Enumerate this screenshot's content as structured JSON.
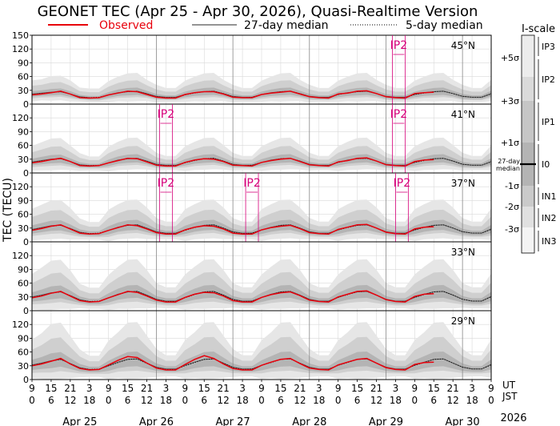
{
  "chart_data": {
    "type": "line",
    "title": "GEONET TEC (Apr 25 - Apr 30, 2026), Quasi-Realtime Version",
    "legend": [
      {
        "key": "observed",
        "label": "Observed",
        "color": "#e8000b"
      },
      {
        "key": "median27",
        "label": "27-day median",
        "color": "#555555"
      },
      {
        "key": "median5",
        "label": "5-day median",
        "color": "#000000"
      }
    ],
    "ylabel": "TEC (TECU)",
    "ylim": [
      0,
      150
    ],
    "yticks": [
      0,
      30,
      60,
      90,
      120,
      150
    ],
    "x_unit_labels": {
      "ut": "UT",
      "jst": "JST"
    },
    "xticks_ut": [
      "9",
      "15",
      "21",
      "3",
      "9",
      "15",
      "21",
      "3",
      "9",
      "15",
      "21",
      "3",
      "9",
      "15",
      "21",
      "3",
      "9",
      "15",
      "21",
      "3",
      "9",
      "15",
      "21",
      "3",
      "9"
    ],
    "xticks_jst": [
      "0",
      "6",
      "12",
      "18",
      "0",
      "6",
      "12",
      "18",
      "0",
      "6",
      "12",
      "18",
      "0",
      "6",
      "12",
      "18",
      "0",
      "6",
      "12",
      "18",
      "0",
      "6",
      "12",
      "18",
      "0"
    ],
    "days": [
      "Apr 25",
      "Apr 26",
      "Apr 27",
      "Apr 28",
      "Apr 29",
      "Apr 30"
    ],
    "year": "2026",
    "x_hours": [
      0,
      3,
      6,
      9,
      12,
      15,
      18,
      21,
      24,
      27,
      30,
      33,
      36,
      39,
      42,
      45,
      48,
      51,
      54,
      57,
      60,
      63,
      66,
      69,
      72,
      75,
      78,
      81,
      84,
      87,
      90,
      93,
      96,
      99,
      102,
      105,
      108,
      111,
      114,
      117,
      120,
      123,
      126,
      129,
      132,
      135,
      138,
      141,
      144
    ],
    "observed_until_hour": 122,
    "panels": [
      {
        "lat": "45°N",
        "median27": [
          22,
          24,
          26,
          27,
          22,
          16,
          14,
          14,
          20,
          25,
          27,
          28,
          23,
          17,
          15,
          15,
          21,
          25,
          27,
          28,
          23,
          17,
          15,
          15,
          21,
          25,
          27,
          28,
          23,
          17,
          15,
          15,
          21,
          25,
          27,
          28,
          23,
          17,
          15,
          15,
          21,
          25,
          27,
          28,
          23,
          17,
          15,
          15,
          23
        ],
        "observed": [
          20,
          22,
          25,
          28,
          22,
          14,
          13,
          14,
          20,
          24,
          28,
          27,
          21,
          15,
          13,
          13,
          21,
          25,
          27,
          27,
          22,
          15,
          14,
          14,
          21,
          24,
          26,
          28,
          22,
          16,
          14,
          13,
          22,
          24,
          28,
          29,
          23,
          16,
          14,
          13,
          23,
          25,
          26
        ],
        "median5": [
          21,
          23,
          25,
          27,
          22,
          15,
          14,
          15,
          20,
          24,
          27,
          28,
          22,
          16,
          14,
          14,
          20,
          24,
          27,
          28,
          23,
          16,
          14,
          15,
          21,
          24,
          27,
          28,
          23,
          16,
          14,
          14,
          21,
          24,
          27,
          28,
          23,
          16,
          14,
          14,
          21,
          24,
          27,
          28,
          23,
          17,
          15,
          15,
          22
        ],
        "std": [
          6,
          6,
          7,
          7,
          6,
          4,
          4,
          4,
          6,
          7,
          8,
          8,
          6,
          5,
          4,
          4,
          6,
          7,
          8,
          8,
          6,
          5,
          4,
          4,
          6,
          7,
          8,
          8,
          6,
          5,
          4,
          4,
          6,
          7,
          8,
          8,
          6,
          5,
          4,
          4,
          6,
          7,
          8,
          8,
          6,
          5,
          4,
          4,
          6
        ],
        "markers": [
          {
            "label": "IP2",
            "hour": 115
          }
        ]
      },
      {
        "lat": "41°N",
        "median27": [
          24,
          27,
          30,
          31,
          25,
          18,
          16,
          16,
          22,
          28,
          31,
          32,
          26,
          19,
          17,
          17,
          23,
          28,
          31,
          32,
          26,
          19,
          17,
          17,
          23,
          28,
          31,
          32,
          26,
          19,
          17,
          17,
          23,
          28,
          31,
          32,
          26,
          19,
          17,
          17,
          23,
          28,
          31,
          32,
          26,
          19,
          17,
          17,
          25
        ],
        "observed": [
          22,
          25,
          29,
          32,
          25,
          16,
          15,
          16,
          22,
          27,
          32,
          31,
          24,
          17,
          15,
          15,
          23,
          28,
          31,
          30,
          25,
          17,
          16,
          15,
          23,
          27,
          30,
          32,
          25,
          18,
          16,
          15,
          24,
          27,
          32,
          33,
          26,
          18,
          16,
          15,
          25,
          28,
          29
        ],
        "median5": [
          23,
          26,
          29,
          31,
          25,
          17,
          16,
          17,
          22,
          27,
          31,
          32,
          25,
          18,
          16,
          16,
          22,
          27,
          31,
          32,
          26,
          18,
          16,
          17,
          23,
          27,
          31,
          32,
          26,
          18,
          16,
          16,
          23,
          27,
          31,
          32,
          26,
          18,
          16,
          16,
          23,
          27,
          31,
          32,
          26,
          19,
          17,
          17,
          24
        ],
        "std": [
          7,
          8,
          9,
          9,
          7,
          5,
          4,
          4,
          7,
          8,
          9,
          9,
          7,
          5,
          4,
          4,
          7,
          8,
          9,
          9,
          7,
          5,
          4,
          4,
          7,
          8,
          9,
          9,
          7,
          5,
          4,
          4,
          7,
          8,
          9,
          9,
          7,
          5,
          4,
          4,
          7,
          8,
          9,
          9,
          7,
          5,
          4,
          4,
          7
        ],
        "markers": [
          {
            "label": "IP2",
            "hour": 42
          },
          {
            "label": "IP2",
            "hour": 115
          }
        ]
      },
      {
        "lat": "37°N",
        "median27": [
          27,
          31,
          35,
          36,
          29,
          21,
          18,
          18,
          25,
          32,
          36,
          37,
          30,
          22,
          19,
          19,
          26,
          32,
          36,
          37,
          30,
          22,
          19,
          19,
          26,
          32,
          36,
          37,
          30,
          22,
          19,
          19,
          26,
          32,
          36,
          37,
          30,
          22,
          19,
          19,
          26,
          32,
          36,
          37,
          30,
          22,
          19,
          19,
          28
        ],
        "observed": [
          25,
          29,
          34,
          37,
          28,
          19,
          17,
          18,
          25,
          31,
          37,
          35,
          28,
          20,
          17,
          17,
          26,
          32,
          35,
          34,
          28,
          19,
          17,
          17,
          26,
          31,
          34,
          36,
          29,
          20,
          18,
          17,
          27,
          32,
          37,
          38,
          30,
          21,
          18,
          17,
          28,
          32,
          33
        ],
        "median5": [
          26,
          30,
          34,
          36,
          29,
          20,
          18,
          19,
          25,
          31,
          36,
          37,
          29,
          21,
          18,
          18,
          25,
          31,
          36,
          37,
          30,
          21,
          18,
          19,
          26,
          31,
          36,
          37,
          30,
          21,
          18,
          18,
          26,
          31,
          36,
          37,
          30,
          21,
          18,
          18,
          26,
          31,
          36,
          37,
          30,
          22,
          19,
          19,
          27
        ],
        "std": [
          9,
          10,
          11,
          11,
          9,
          6,
          5,
          5,
          9,
          10,
          11,
          11,
          9,
          6,
          5,
          5,
          9,
          10,
          11,
          11,
          9,
          6,
          5,
          5,
          9,
          10,
          11,
          11,
          9,
          6,
          5,
          5,
          9,
          10,
          11,
          11,
          9,
          6,
          5,
          5,
          9,
          10,
          11,
          11,
          9,
          6,
          5,
          5,
          9
        ],
        "markers": [
          {
            "label": "IP2",
            "hour": 42
          },
          {
            "label": "IP2",
            "hour": 69
          },
          {
            "label": "IP2",
            "hour": 116
          }
        ]
      },
      {
        "lat": "33°N",
        "median27": [
          30,
          34,
          39,
          41,
          33,
          24,
          20,
          20,
          28,
          36,
          41,
          42,
          34,
          25,
          21,
          21,
          29,
          36,
          41,
          42,
          34,
          25,
          21,
          21,
          29,
          36,
          41,
          42,
          34,
          25,
          21,
          21,
          29,
          36,
          41,
          42,
          34,
          25,
          21,
          21,
          29,
          36,
          41,
          42,
          34,
          25,
          21,
          21,
          31
        ],
        "observed": [
          28,
          32,
          38,
          42,
          32,
          22,
          19,
          20,
          28,
          35,
          42,
          40,
          32,
          23,
          19,
          19,
          29,
          36,
          40,
          39,
          32,
          22,
          19,
          19,
          29,
          35,
          39,
          41,
          33,
          23,
          20,
          19,
          30,
          36,
          42,
          43,
          34,
          24,
          20,
          19,
          31,
          36,
          37
        ],
        "median5": [
          29,
          33,
          38,
          41,
          33,
          23,
          20,
          21,
          28,
          35,
          41,
          42,
          33,
          24,
          20,
          20,
          28,
          35,
          41,
          42,
          34,
          24,
          20,
          21,
          29,
          35,
          41,
          42,
          34,
          24,
          20,
          20,
          29,
          35,
          41,
          42,
          34,
          24,
          20,
          20,
          29,
          35,
          41,
          42,
          34,
          25,
          21,
          21,
          30
        ],
        "std": [
          10,
          12,
          14,
          14,
          11,
          7,
          6,
          6,
          10,
          12,
          14,
          14,
          11,
          7,
          6,
          6,
          10,
          12,
          14,
          14,
          11,
          7,
          6,
          6,
          10,
          12,
          14,
          14,
          11,
          7,
          6,
          6,
          10,
          12,
          14,
          14,
          11,
          7,
          6,
          6,
          10,
          12,
          14,
          14,
          11,
          7,
          6,
          6,
          10
        ],
        "markers": []
      },
      {
        "lat": "29°N",
        "median27": [
          32,
          36,
          41,
          44,
          35,
          26,
          22,
          22,
          30,
          38,
          44,
          45,
          36,
          27,
          23,
          23,
          31,
          38,
          44,
          45,
          36,
          27,
          23,
          23,
          31,
          38,
          44,
          45,
          36,
          27,
          23,
          23,
          31,
          38,
          44,
          45,
          36,
          27,
          23,
          23,
          31,
          38,
          44,
          45,
          36,
          27,
          23,
          23,
          33
        ],
        "observed": [
          30,
          34,
          40,
          46,
          34,
          24,
          21,
          22,
          32,
          42,
          50,
          48,
          36,
          25,
          21,
          21,
          33,
          44,
          52,
          46,
          34,
          24,
          21,
          21,
          31,
          38,
          44,
          46,
          35,
          25,
          22,
          21,
          32,
          38,
          44,
          46,
          36,
          26,
          22,
          21,
          33,
          37,
          38
        ],
        "median5": [
          31,
          35,
          40,
          44,
          35,
          25,
          22,
          23,
          30,
          37,
          44,
          45,
          35,
          26,
          22,
          22,
          30,
          37,
          44,
          45,
          36,
          26,
          22,
          23,
          31,
          37,
          44,
          45,
          36,
          26,
          22,
          22,
          31,
          37,
          44,
          45,
          36,
          26,
          22,
          22,
          31,
          37,
          44,
          45,
          36,
          27,
          23,
          23,
          32
        ],
        "std": [
          11,
          13,
          16,
          16,
          12,
          8,
          6,
          6,
          11,
          13,
          16,
          16,
          12,
          8,
          6,
          6,
          11,
          13,
          16,
          16,
          12,
          8,
          6,
          6,
          11,
          13,
          16,
          16,
          12,
          8,
          6,
          6,
          11,
          13,
          16,
          16,
          12,
          8,
          6,
          6,
          11,
          13,
          16,
          16,
          12,
          8,
          6,
          6,
          11
        ]
      }
    ]
  },
  "iscale": {
    "title": "I-scale",
    "sigma_labels": [
      "+5σ",
      "+3σ",
      "+1σ",
      "-1σ",
      "-2σ",
      "-3σ"
    ],
    "median_label_line1": "27-day",
    "median_label_line2": "median",
    "class_labels": [
      "IP3",
      "IP2",
      "IP1",
      "I0",
      "IN1",
      "IN2",
      "IN3"
    ]
  },
  "colors": {
    "observed": "#e8000b",
    "band_outer": "#e6e6e6",
    "band_mid": "#cfcfcf",
    "band_inner": "#b4b4b4",
    "marker": "#d6007a",
    "grid": "#d9d9d9"
  }
}
